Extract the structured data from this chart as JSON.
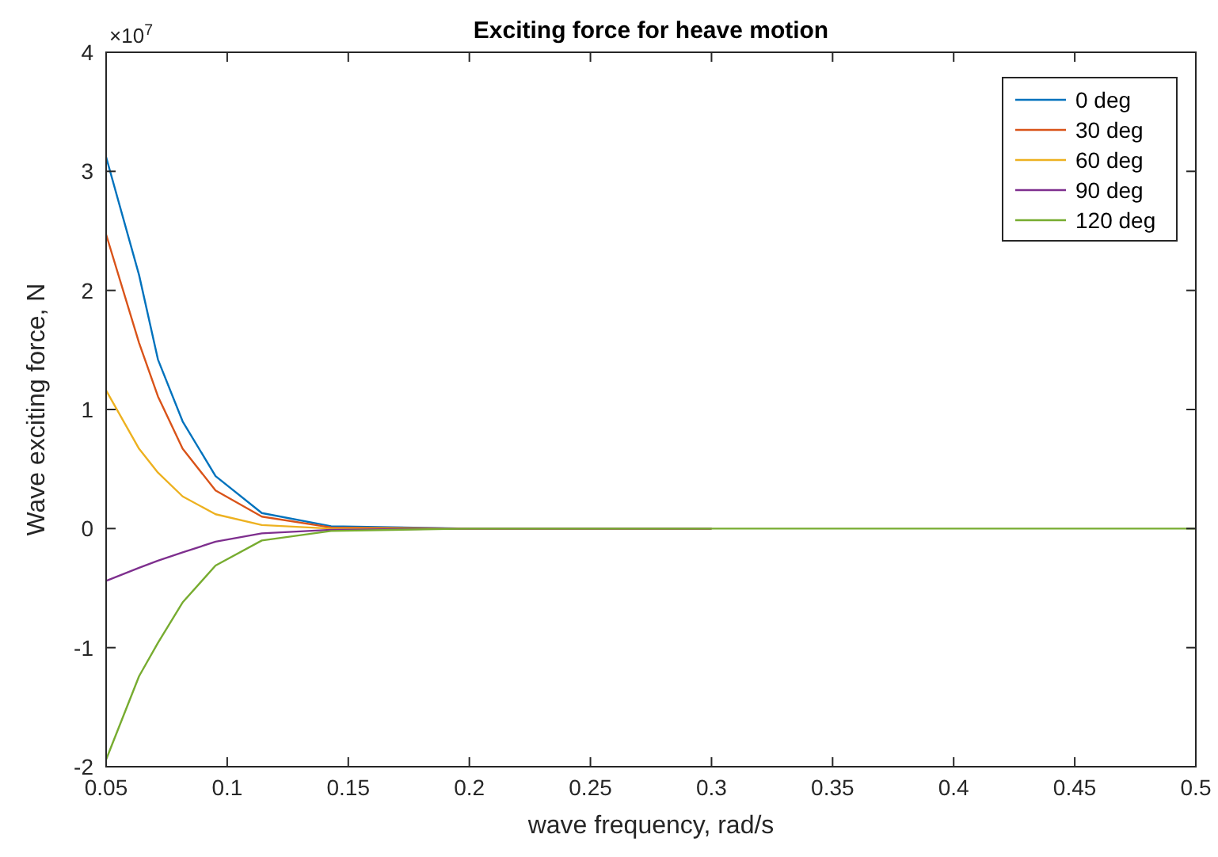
{
  "chart_data": {
    "type": "line",
    "title": "Exciting force for heave motion",
    "xlabel": "wave frequency, rad/s",
    "ylabel": "Wave exciting force, N",
    "annotations": [
      "×10$^{7}$"
    ],
    "x": [
      0.05,
      0.0636,
      0.0714,
      0.0816,
      0.0952,
      0.1143,
      0.1429,
      0.2,
      0.3,
      0.4,
      0.5
    ],
    "series": [
      {
        "name": "0 deg",
        "color": "#0072bd",
        "values": [
          3.12,
          2.13,
          1.42,
          0.9,
          0.44,
          0.13,
          0.02,
          0,
          0,
          null,
          null
        ]
      },
      {
        "name": "30 deg",
        "color": "#d95319",
        "values": [
          2.47,
          1.56,
          1.11,
          0.67,
          0.32,
          0.1,
          0.01,
          0,
          0,
          null,
          null
        ]
      },
      {
        "name": "60 deg",
        "color": "#edb120",
        "values": [
          1.16,
          0.67,
          0.47,
          0.27,
          0.12,
          0.03,
          0,
          0,
          0,
          null,
          null
        ]
      },
      {
        "name": "90 deg",
        "color": "#7e2f8e",
        "values": [
          -0.44,
          -0.33,
          -0.27,
          -0.2,
          -0.11,
          -0.04,
          -0.01,
          0,
          0,
          null,
          null
        ]
      },
      {
        "name": "120 deg",
        "color": "#77ac30",
        "values": [
          -1.94,
          -1.24,
          -0.96,
          -0.62,
          -0.31,
          -0.1,
          -0.02,
          0,
          0,
          0,
          0
        ]
      }
    ],
    "xlim": [
      0.05,
      0.5
    ],
    "xticks": [
      0.05,
      0.1,
      0.15,
      0.2,
      0.25,
      0.3,
      0.35,
      0.4,
      0.45,
      0.5
    ],
    "ylim": [
      -2,
      4
    ],
    "yticks": [
      -2,
      -1,
      0,
      1,
      2,
      3,
      4
    ],
    "legend": "top right",
    "grid": false,
    "marker": "none",
    "line_style": "solid"
  }
}
